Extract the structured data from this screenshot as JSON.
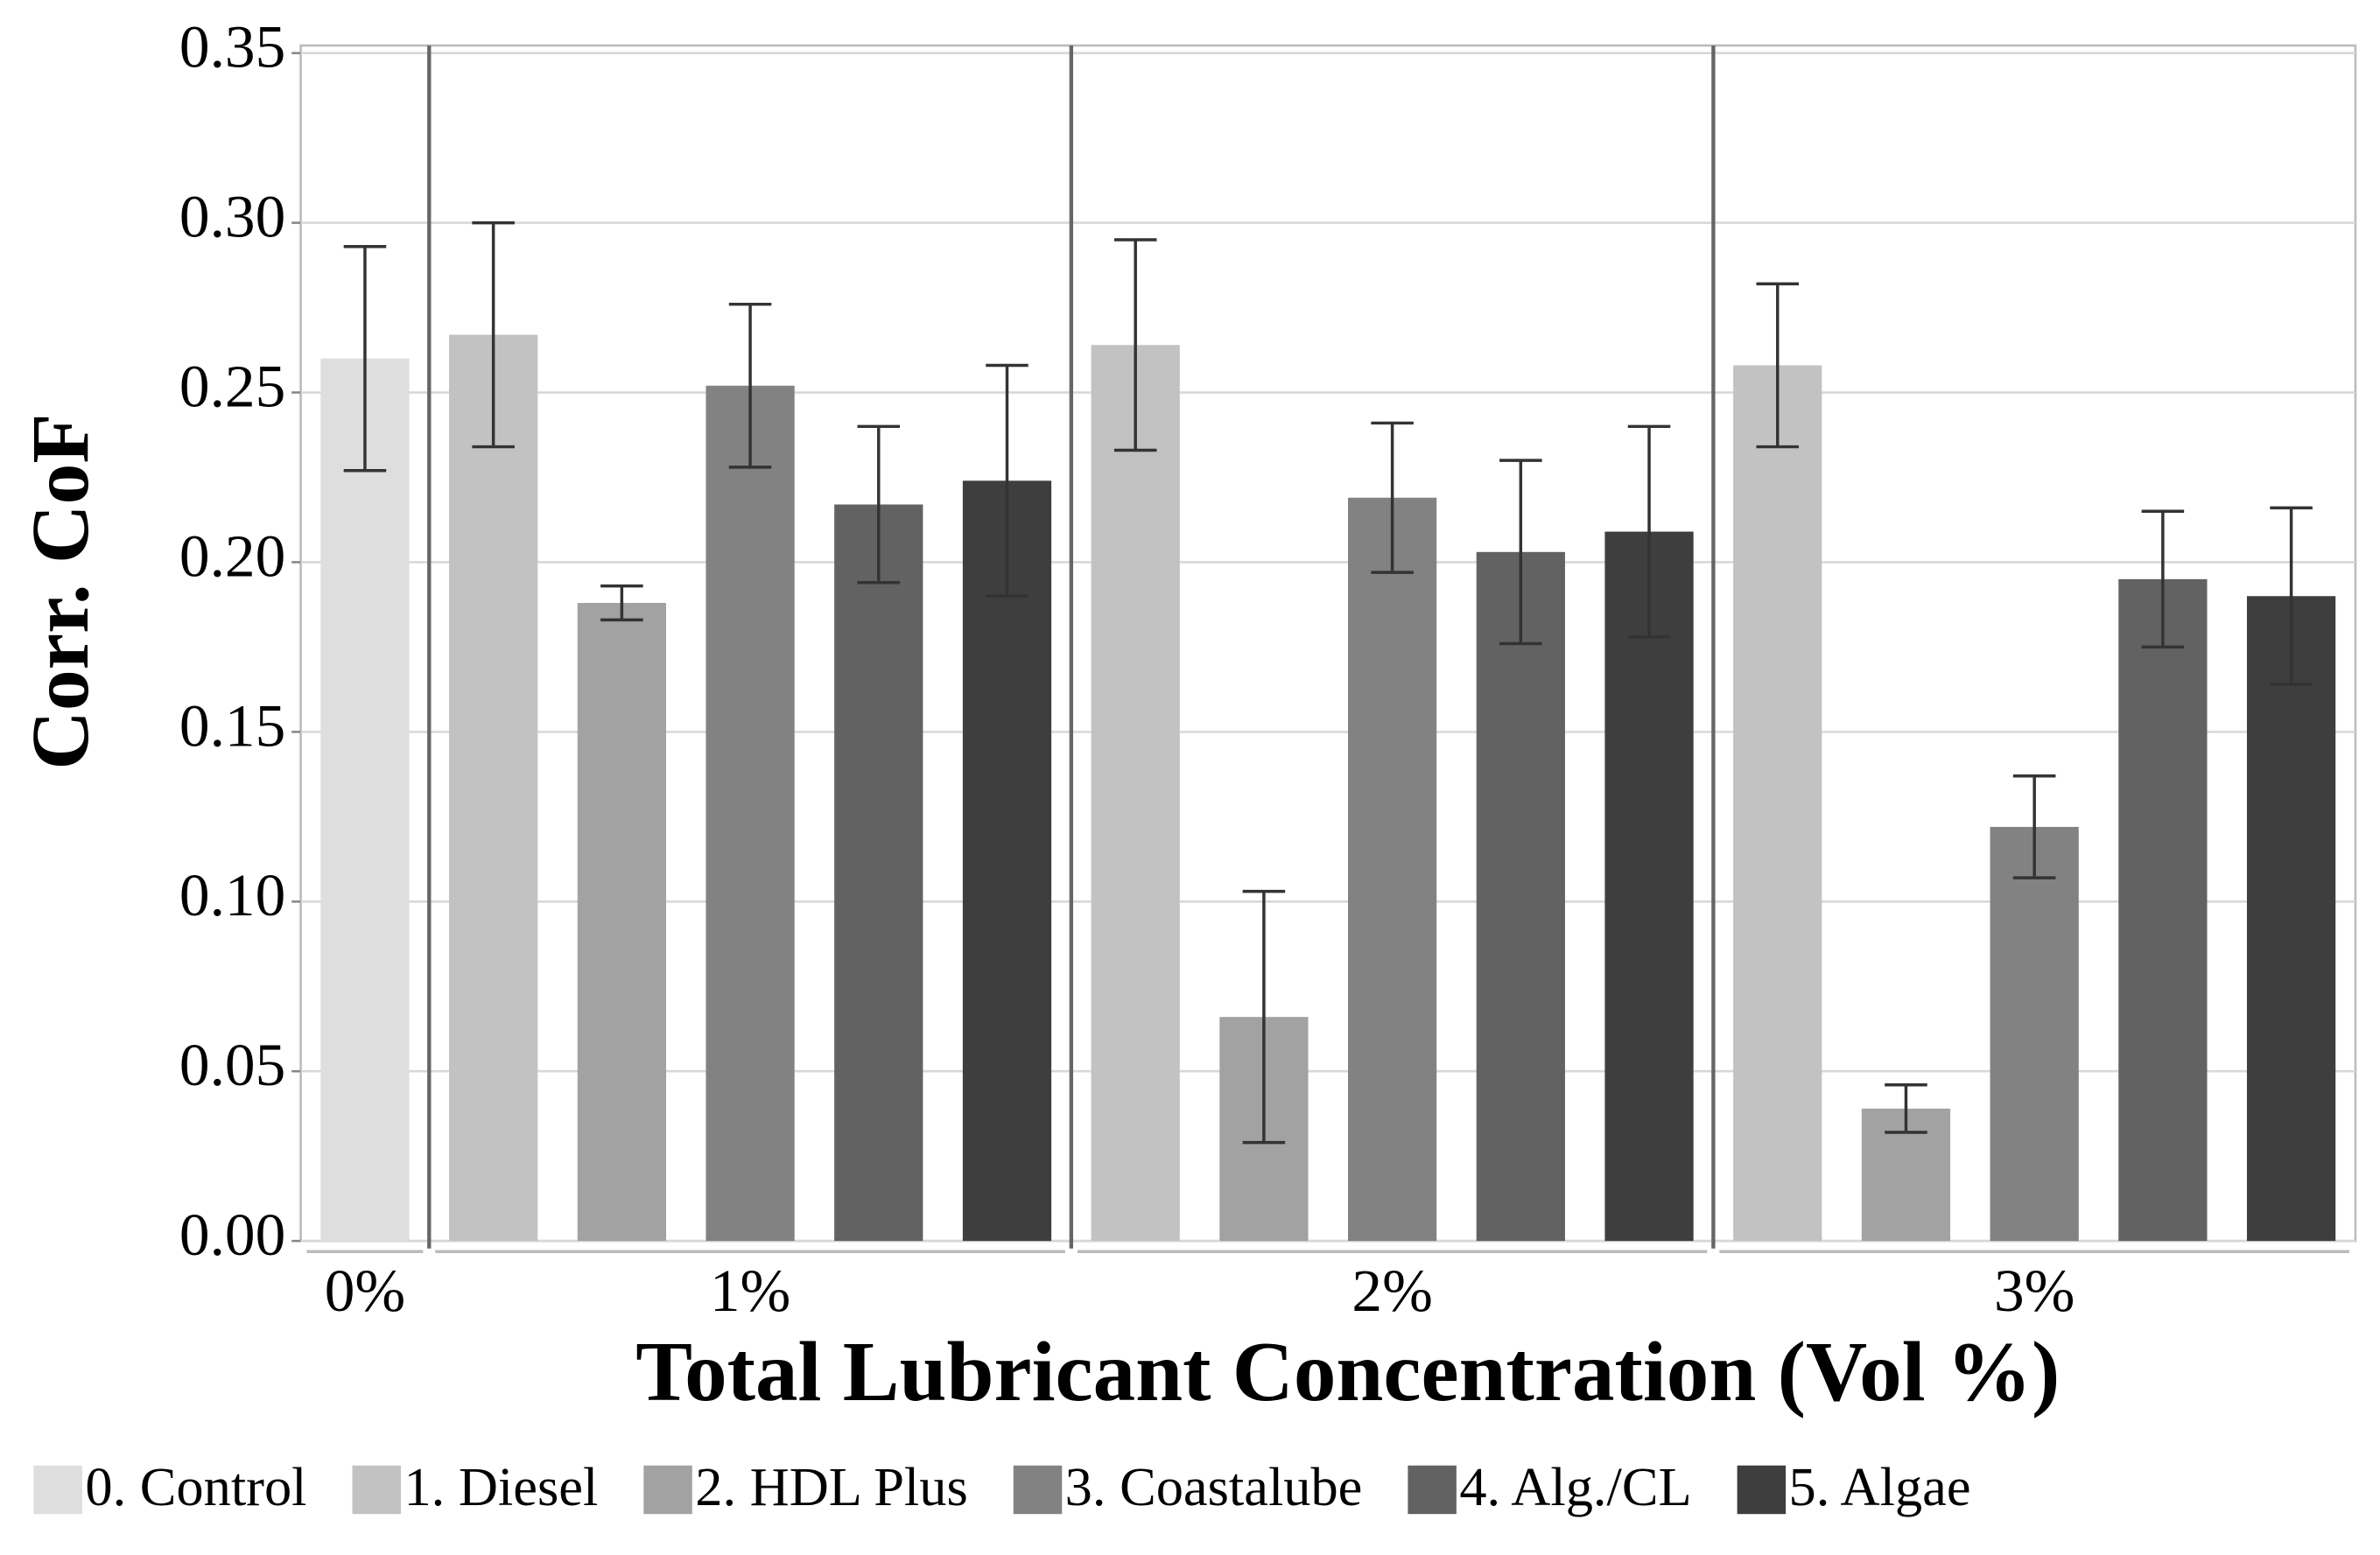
{
  "chart_data": {
    "type": "bar",
    "x_label": "Total Lubricant Concentration (Vol %)",
    "y_label": "Corr. CoF",
    "categories": [
      "0%",
      "1%",
      "2%",
      "3%"
    ],
    "series": [
      {
        "name": "0. Control",
        "color": "#dedede",
        "values": [
          0.26,
          null,
          null,
          null
        ],
        "errors": [
          0.033,
          null,
          null,
          null
        ]
      },
      {
        "name": "1. Diesel",
        "color": "#c2c2c2",
        "values": [
          null,
          0.267,
          0.264,
          0.258
        ],
        "errors": [
          null,
          0.033,
          0.031,
          0.024
        ]
      },
      {
        "name": "2. HDL Plus",
        "color": "#a2a2a2",
        "values": [
          null,
          0.188,
          0.066,
          0.039
        ],
        "errors": [
          null,
          0.005,
          0.037,
          0.007
        ]
      },
      {
        "name": "3. Coastalube",
        "color": "#828282",
        "values": [
          null,
          0.252,
          0.219,
          0.122
        ],
        "errors": [
          null,
          0.024,
          0.022,
          0.015
        ]
      },
      {
        "name": "4. Alg./CL",
        "color": "#626262",
        "values": [
          null,
          0.217,
          0.203,
          0.195
        ],
        "errors": [
          null,
          0.023,
          0.027,
          0.02
        ]
      },
      {
        "name": "5. Algae",
        "color": "#3e3e3e",
        "values": [
          null,
          0.224,
          0.209,
          0.19
        ],
        "errors": [
          null,
          0.034,
          0.031,
          0.026
        ]
      }
    ],
    "ylim": [
      0,
      0.35
    ],
    "yticks": [
      {
        "value": 0,
        "label": "0.00"
      },
      0.05,
      {
        "value": 0.1,
        "label": "0.10"
      },
      0.15,
      {
        "value": 0.2,
        "label": "0.20"
      },
      0.25,
      {
        "value": 0.3,
        "label": "0.30"
      },
      0.35
    ],
    "grid": true
  }
}
